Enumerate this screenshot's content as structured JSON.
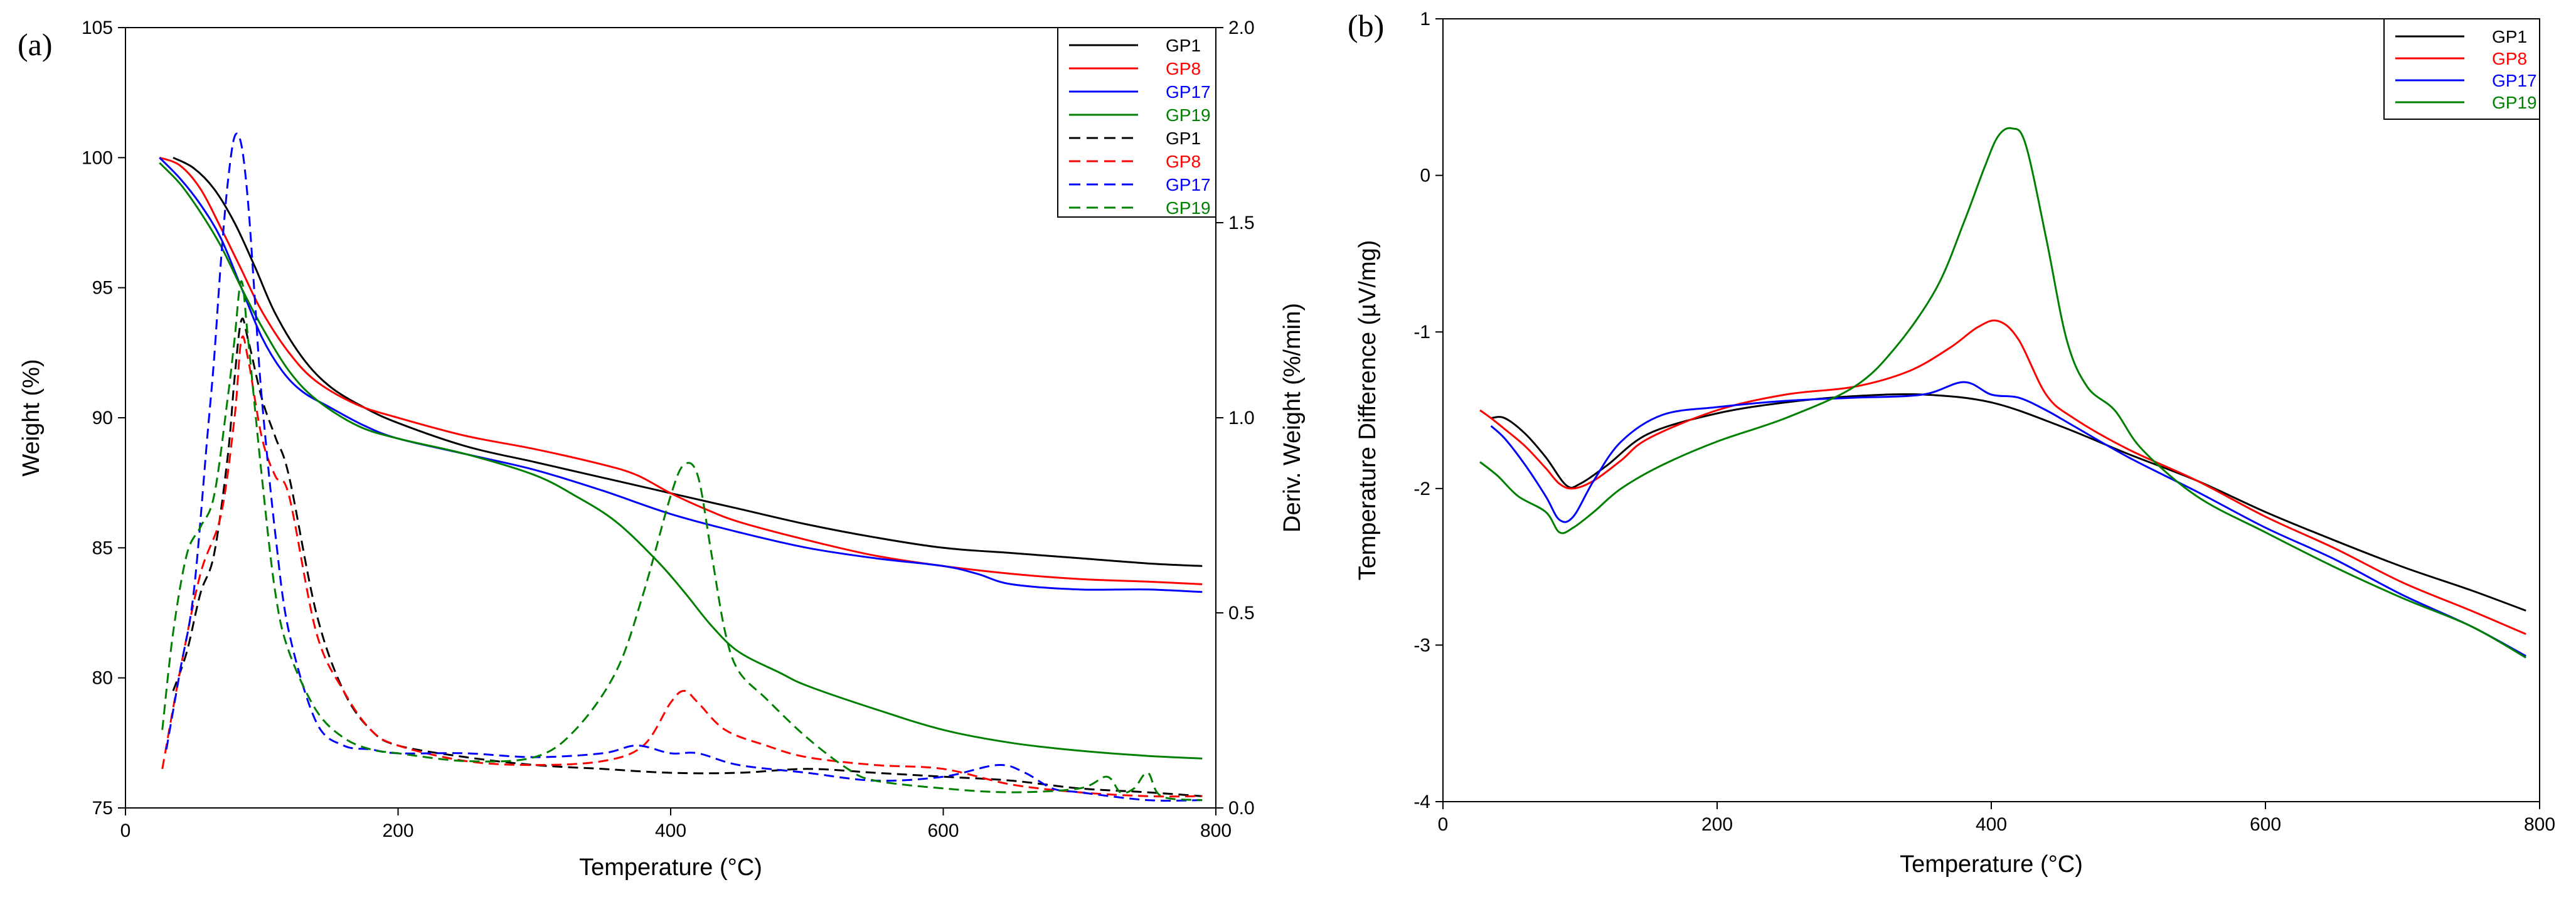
{
  "panels": [
    {
      "label": "(a)",
      "xlabel": "Temperature (°C)",
      "ylabel_left": "Weight (%)",
      "ylabel_right": "Deriv. Weight (%/min)"
    },
    {
      "label": "(b)",
      "xlabel": "Temperature (°C)",
      "ylabel": "Temperature Difference (µV/mg)"
    }
  ],
  "colors": {
    "GP1": "#000000",
    "GP8": "#ff0000",
    "GP17": "#0000ff",
    "GP19": "#008000"
  },
  "chart_data": [
    {
      "type": "line",
      "panel": "(a)",
      "xlim": [
        0,
        800
      ],
      "ylim": [
        75,
        105
      ],
      "y2lim": [
        0,
        2.0
      ],
      "xticks": [
        0,
        200,
        400,
        600,
        800
      ],
      "yticks": [
        75,
        80,
        85,
        90,
        95,
        100,
        105
      ],
      "y2ticks": [
        0.0,
        0.5,
        1.0,
        1.5,
        2.0
      ],
      "legend_position": "top-right",
      "series": [
        {
          "name": "GP1",
          "axis": "left",
          "style": "solid",
          "color": "#000000",
          "x": [
            35,
            50,
            65,
            80,
            95,
            110,
            130,
            150,
            175,
            200,
            250,
            300,
            350,
            400,
            450,
            500,
            550,
            600,
            650,
            700,
            750,
            790
          ],
          "y": [
            100,
            99.6,
            98.8,
            97.5,
            95.8,
            94.0,
            92.3,
            91.2,
            90.4,
            89.8,
            88.9,
            88.3,
            87.7,
            87.1,
            86.5,
            85.9,
            85.4,
            85.0,
            84.8,
            84.6,
            84.4,
            84.3
          ]
        },
        {
          "name": "GP8",
          "axis": "left",
          "style": "solid",
          "color": "#ff0000",
          "x": [
            25,
            40,
            55,
            70,
            85,
            100,
            120,
            140,
            170,
            200,
            250,
            300,
            350,
            375,
            400,
            425,
            450,
            500,
            550,
            600,
            650,
            700,
            750,
            790
          ],
          "y": [
            100,
            99.7,
            98.8,
            97.3,
            95.7,
            94.1,
            92.5,
            91.4,
            90.5,
            90.0,
            89.3,
            88.8,
            88.2,
            87.8,
            87.1,
            86.5,
            86.0,
            85.3,
            84.7,
            84.3,
            84.0,
            83.8,
            83.7,
            83.6
          ]
        },
        {
          "name": "GP17",
          "axis": "left",
          "style": "solid",
          "color": "#0000ff",
          "x": [
            25,
            40,
            55,
            70,
            85,
            100,
            115,
            130,
            150,
            175,
            200,
            250,
            300,
            350,
            400,
            450,
            500,
            550,
            600,
            625,
            650,
            700,
            750,
            790
          ],
          "y": [
            100,
            99.2,
            98.2,
            96.9,
            95.0,
            93.1,
            91.8,
            91.0,
            90.4,
            89.7,
            89.2,
            88.6,
            88.0,
            87.2,
            86.3,
            85.6,
            85.0,
            84.6,
            84.3,
            84.0,
            83.6,
            83.4,
            83.4,
            83.3
          ]
        },
        {
          "name": "GP19",
          "axis": "left",
          "style": "solid",
          "color": "#008000",
          "x": [
            25,
            40,
            55,
            70,
            85,
            100,
            120,
            140,
            170,
            200,
            250,
            300,
            330,
            360,
            390,
            410,
            430,
            450,
            480,
            500,
            550,
            600,
            650,
            700,
            750,
            790
          ],
          "y": [
            99.8,
            99.0,
            97.9,
            96.6,
            95.0,
            93.5,
            91.8,
            90.7,
            89.7,
            89.2,
            88.6,
            87.8,
            87.0,
            86.0,
            84.5,
            83.3,
            82.0,
            81.0,
            80.2,
            79.7,
            78.8,
            78.0,
            77.5,
            77.2,
            77.0,
            76.9
          ]
        },
        {
          "name": "GP1",
          "axis": "right",
          "style": "dashed",
          "color": "#000000",
          "x": [
            35,
            45,
            55,
            65,
            75,
            80,
            85,
            90,
            100,
            110,
            120,
            140,
            160,
            180,
            200,
            250,
            300,
            350,
            400,
            450,
            500,
            550,
            600,
            650,
            700,
            750,
            790
          ],
          "y": [
            0.3,
            0.4,
            0.55,
            0.65,
            0.9,
            1.1,
            1.25,
            1.2,
            1.05,
            0.95,
            0.85,
            0.5,
            0.3,
            0.2,
            0.16,
            0.13,
            0.11,
            0.1,
            0.09,
            0.09,
            0.1,
            0.09,
            0.08,
            0.07,
            0.05,
            0.04,
            0.03
          ]
        },
        {
          "name": "GP8",
          "axis": "right",
          "style": "dashed",
          "color": "#ff0000",
          "x": [
            27,
            40,
            55,
            70,
            80,
            85,
            90,
            100,
            110,
            120,
            140,
            160,
            180,
            200,
            250,
            300,
            350,
            380,
            400,
            410,
            420,
            440,
            470,
            500,
            550,
            600,
            650,
            700,
            750,
            790
          ],
          "y": [
            0.1,
            0.35,
            0.6,
            0.75,
            1.0,
            1.2,
            1.15,
            0.95,
            0.85,
            0.8,
            0.45,
            0.3,
            0.2,
            0.16,
            0.12,
            0.11,
            0.12,
            0.16,
            0.27,
            0.3,
            0.27,
            0.2,
            0.16,
            0.13,
            0.11,
            0.1,
            0.06,
            0.04,
            0.03,
            0.03
          ]
        },
        {
          "name": "GP17",
          "axis": "right",
          "style": "dashed",
          "color": "#0000ff",
          "x": [
            30,
            40,
            50,
            60,
            65,
            70,
            75,
            80,
            85,
            90,
            95,
            100,
            110,
            120,
            140,
            160,
            180,
            200,
            250,
            300,
            350,
            375,
            400,
            420,
            450,
            500,
            550,
            600,
            640,
            660,
            680,
            700,
            750,
            790
          ],
          "y": [
            0.15,
            0.35,
            0.55,
            0.95,
            1.15,
            1.4,
            1.6,
            1.72,
            1.7,
            1.55,
            1.3,
            1.05,
            0.7,
            0.45,
            0.22,
            0.16,
            0.15,
            0.14,
            0.14,
            0.13,
            0.14,
            0.16,
            0.14,
            0.14,
            0.11,
            0.09,
            0.07,
            0.08,
            0.11,
            0.09,
            0.05,
            0.04,
            0.02,
            0.02
          ]
        },
        {
          "name": "GP19",
          "axis": "right",
          "style": "dashed",
          "color": "#008000",
          "x": [
            27,
            35,
            45,
            55,
            65,
            75,
            80,
            85,
            90,
            100,
            110,
            120,
            140,
            160,
            180,
            200,
            250,
            300,
            330,
            360,
            380,
            400,
            410,
            420,
            430,
            440,
            450,
            470,
            500,
            530,
            550,
            600,
            650,
            700,
            720,
            730,
            740,
            750,
            760,
            790
          ],
          "y": [
            0.2,
            0.45,
            0.65,
            0.72,
            0.8,
            1.05,
            1.2,
            1.35,
            1.2,
            0.85,
            0.55,
            0.4,
            0.25,
            0.18,
            0.15,
            0.14,
            0.12,
            0.13,
            0.2,
            0.35,
            0.55,
            0.8,
            0.88,
            0.85,
            0.65,
            0.45,
            0.35,
            0.28,
            0.18,
            0.1,
            0.07,
            0.05,
            0.04,
            0.05,
            0.08,
            0.04,
            0.05,
            0.09,
            0.03,
            0.02
          ]
        }
      ]
    },
    {
      "type": "line",
      "panel": "(b)",
      "xlim": [
        0,
        800
      ],
      "ylim": [
        -4,
        1
      ],
      "xticks": [
        0,
        200,
        400,
        600,
        800
      ],
      "yticks": [
        -4,
        -3,
        -2,
        -1,
        0,
        1
      ],
      "legend_position": "top-right",
      "series": [
        {
          "name": "GP1",
          "color": "#000000",
          "x": [
            35,
            45,
            60,
            75,
            90,
            100,
            120,
            150,
            200,
            250,
            300,
            350,
            400,
            450,
            500,
            550,
            600,
            650,
            700,
            750,
            790
          ],
          "y": [
            -1.55,
            -1.55,
            -1.65,
            -1.8,
            -1.98,
            -1.97,
            -1.85,
            -1.65,
            -1.52,
            -1.45,
            -1.41,
            -1.4,
            -1.45,
            -1.6,
            -1.78,
            -1.95,
            -2.15,
            -2.33,
            -2.5,
            -2.65,
            -2.78
          ]
        },
        {
          "name": "GP8",
          "color": "#ff0000",
          "x": [
            27,
            35,
            45,
            60,
            75,
            85,
            95,
            110,
            130,
            150,
            200,
            250,
            300,
            340,
            370,
            390,
            405,
            420,
            440,
            460,
            500,
            550,
            600,
            650,
            700,
            750,
            790
          ],
          "y": [
            -1.5,
            -1.55,
            -1.62,
            -1.73,
            -1.87,
            -1.97,
            -2.0,
            -1.95,
            -1.82,
            -1.68,
            -1.5,
            -1.4,
            -1.35,
            -1.25,
            -1.1,
            -0.97,
            -0.93,
            -1.05,
            -1.4,
            -1.55,
            -1.75,
            -1.95,
            -2.18,
            -2.38,
            -2.6,
            -2.78,
            -2.93
          ]
        },
        {
          "name": "GP17",
          "color": "#0000ff",
          "x": [
            35,
            45,
            60,
            75,
            85,
            95,
            110,
            130,
            160,
            200,
            250,
            300,
            350,
            380,
            400,
            420,
            440,
            460,
            500,
            550,
            600,
            650,
            700,
            750,
            790
          ],
          "y": [
            -1.6,
            -1.68,
            -1.85,
            -2.05,
            -2.2,
            -2.18,
            -1.95,
            -1.7,
            -1.53,
            -1.48,
            -1.44,
            -1.42,
            -1.4,
            -1.32,
            -1.4,
            -1.42,
            -1.5,
            -1.6,
            -1.8,
            -2.02,
            -2.25,
            -2.45,
            -2.68,
            -2.88,
            -3.07
          ]
        },
        {
          "name": "GP19",
          "color": "#008000",
          "x": [
            27,
            40,
            55,
            75,
            85,
            95,
            110,
            130,
            160,
            200,
            250,
            300,
            330,
            360,
            380,
            395,
            405,
            415,
            425,
            440,
            455,
            470,
            490,
            510,
            550,
            600,
            650,
            700,
            750,
            790
          ],
          "y": [
            -1.83,
            -1.92,
            -2.05,
            -2.15,
            -2.28,
            -2.25,
            -2.15,
            -2.0,
            -1.85,
            -1.7,
            -1.55,
            -1.35,
            -1.1,
            -0.72,
            -0.3,
            0.05,
            0.25,
            0.3,
            0.2,
            -0.4,
            -1.05,
            -1.35,
            -1.5,
            -1.75,
            -2.05,
            -2.28,
            -2.5,
            -2.7,
            -2.88,
            -3.08
          ]
        }
      ]
    }
  ]
}
